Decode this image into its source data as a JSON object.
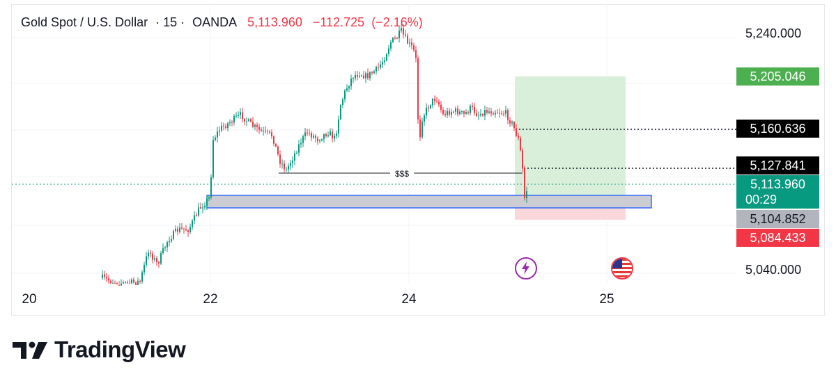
{
  "header": {
    "symbol": "Gold Spot / U.S. Dollar",
    "interval": "· 15 ·",
    "exchange": "OANDA",
    "last_price": "5,113.960",
    "change": "−112.725",
    "change_pct": "(−2.16%)"
  },
  "price_axis": {
    "ticks": [
      "5,240.000",
      "5,040.000"
    ],
    "labels": {
      "take_profit": "5,205.046",
      "level_upper": "5,160.636",
      "level_mid": "5,127.841",
      "current_price": "5,113.960",
      "countdown": "00:29",
      "entry": "5,104.852",
      "stop_loss": "5,084.433"
    }
  },
  "time_axis": {
    "ticks": [
      "20",
      "22",
      "24",
      "25"
    ]
  },
  "annotations": {
    "liquidity_text": "$$$"
  },
  "events": {
    "icon_1": "lightning-icon",
    "icon_2": "us-flag-icon"
  },
  "colors": {
    "up": "#089981",
    "down": "#f23645",
    "profit_zone": "#c8e6c9",
    "loss_zone": "#f8c9cd",
    "tp_label": "#4caf50",
    "sl_label": "#f23645",
    "current": "#089981",
    "entry_label": "#b2b5be"
  },
  "brand": {
    "name": "TradingView"
  }
}
